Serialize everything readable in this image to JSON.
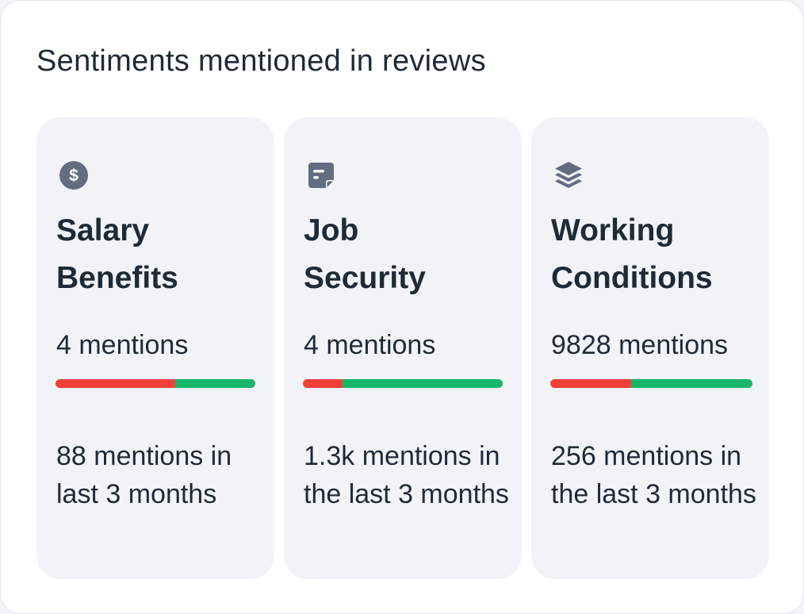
{
  "widget": {
    "title": "Sentiments mentioned in reviews"
  },
  "cards": [
    {
      "icon": "dollar-icon",
      "label_line1": "Salary",
      "label_line2": "Benefits",
      "mentions": "4 mentions",
      "negative_fraction": 0.6,
      "recent": "88 mentions in last 3 months"
    },
    {
      "icon": "note-icon",
      "label_line1": "Job",
      "label_line2": "Security",
      "mentions": "4 mentions",
      "negative_fraction": 0.2,
      "recent": "1.3k mentions in the last 3 months"
    },
    {
      "icon": "layers-icon",
      "label_line1": "Working",
      "label_line2": "Conditions",
      "mentions": "9828 mentions",
      "negative_fraction": 0.4,
      "recent": "256 mentions in the last 3 months"
    }
  ],
  "colors": {
    "negative": "#ef4137",
    "positive": "#19b56b",
    "card_bg": "#f2f3f7",
    "icon": "#636c80"
  }
}
